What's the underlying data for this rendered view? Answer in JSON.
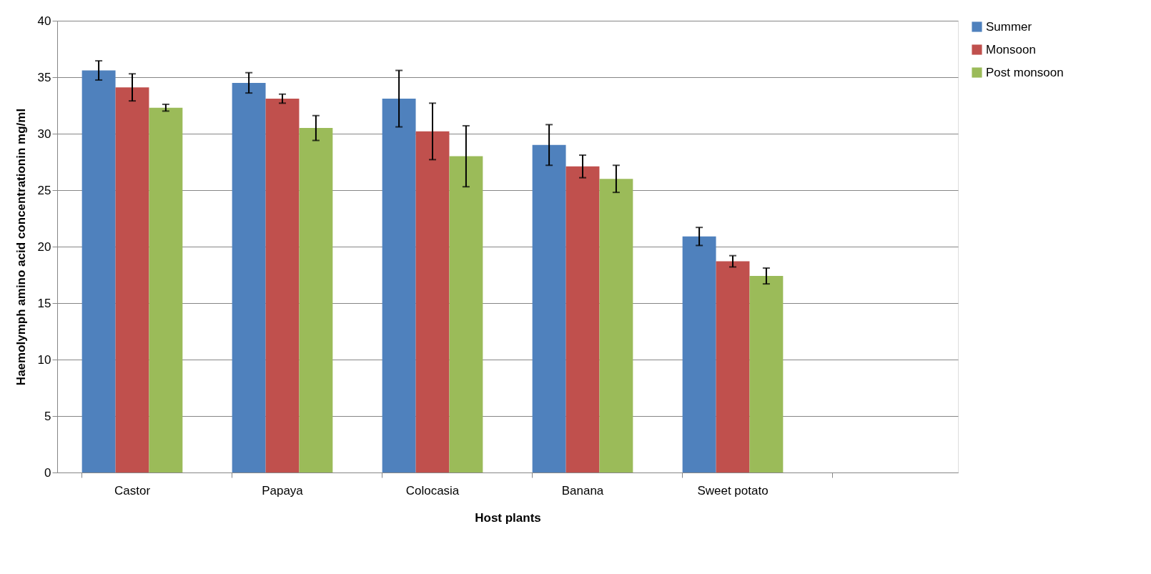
{
  "chart_data": {
    "type": "bar",
    "xlabel": "Host plants",
    "ylabel": "Haemolymph amino acid concentrationin mg/ml",
    "categories": [
      "Castor",
      "Papaya",
      "Colocasia",
      "Banana",
      "Sweet potato",
      null
    ],
    "series": [
      {
        "name": "Summer",
        "color": "#4f81bd",
        "values": [
          35.6,
          34.5,
          33.1,
          29.0,
          20.9,
          null
        ],
        "errors": [
          0.85,
          0.9,
          2.5,
          1.8,
          0.8,
          null
        ]
      },
      {
        "name": "Monsoon",
        "color": "#c0504d",
        "values": [
          34.1,
          33.1,
          30.2,
          27.1,
          18.7,
          null
        ],
        "errors": [
          1.2,
          0.4,
          2.5,
          1.0,
          0.5,
          null
        ]
      },
      {
        "name": "Post monsoon",
        "color": "#9bbb59",
        "values": [
          32.3,
          30.5,
          28.0,
          26.0,
          17.4,
          null
        ],
        "errors": [
          0.3,
          1.1,
          2.7,
          1.2,
          0.7,
          null
        ]
      }
    ],
    "ylim": [
      0,
      40
    ],
    "yticks": [
      0,
      5,
      10,
      15,
      20,
      25,
      30,
      35,
      40
    ],
    "grid": "y",
    "legend": "right"
  }
}
